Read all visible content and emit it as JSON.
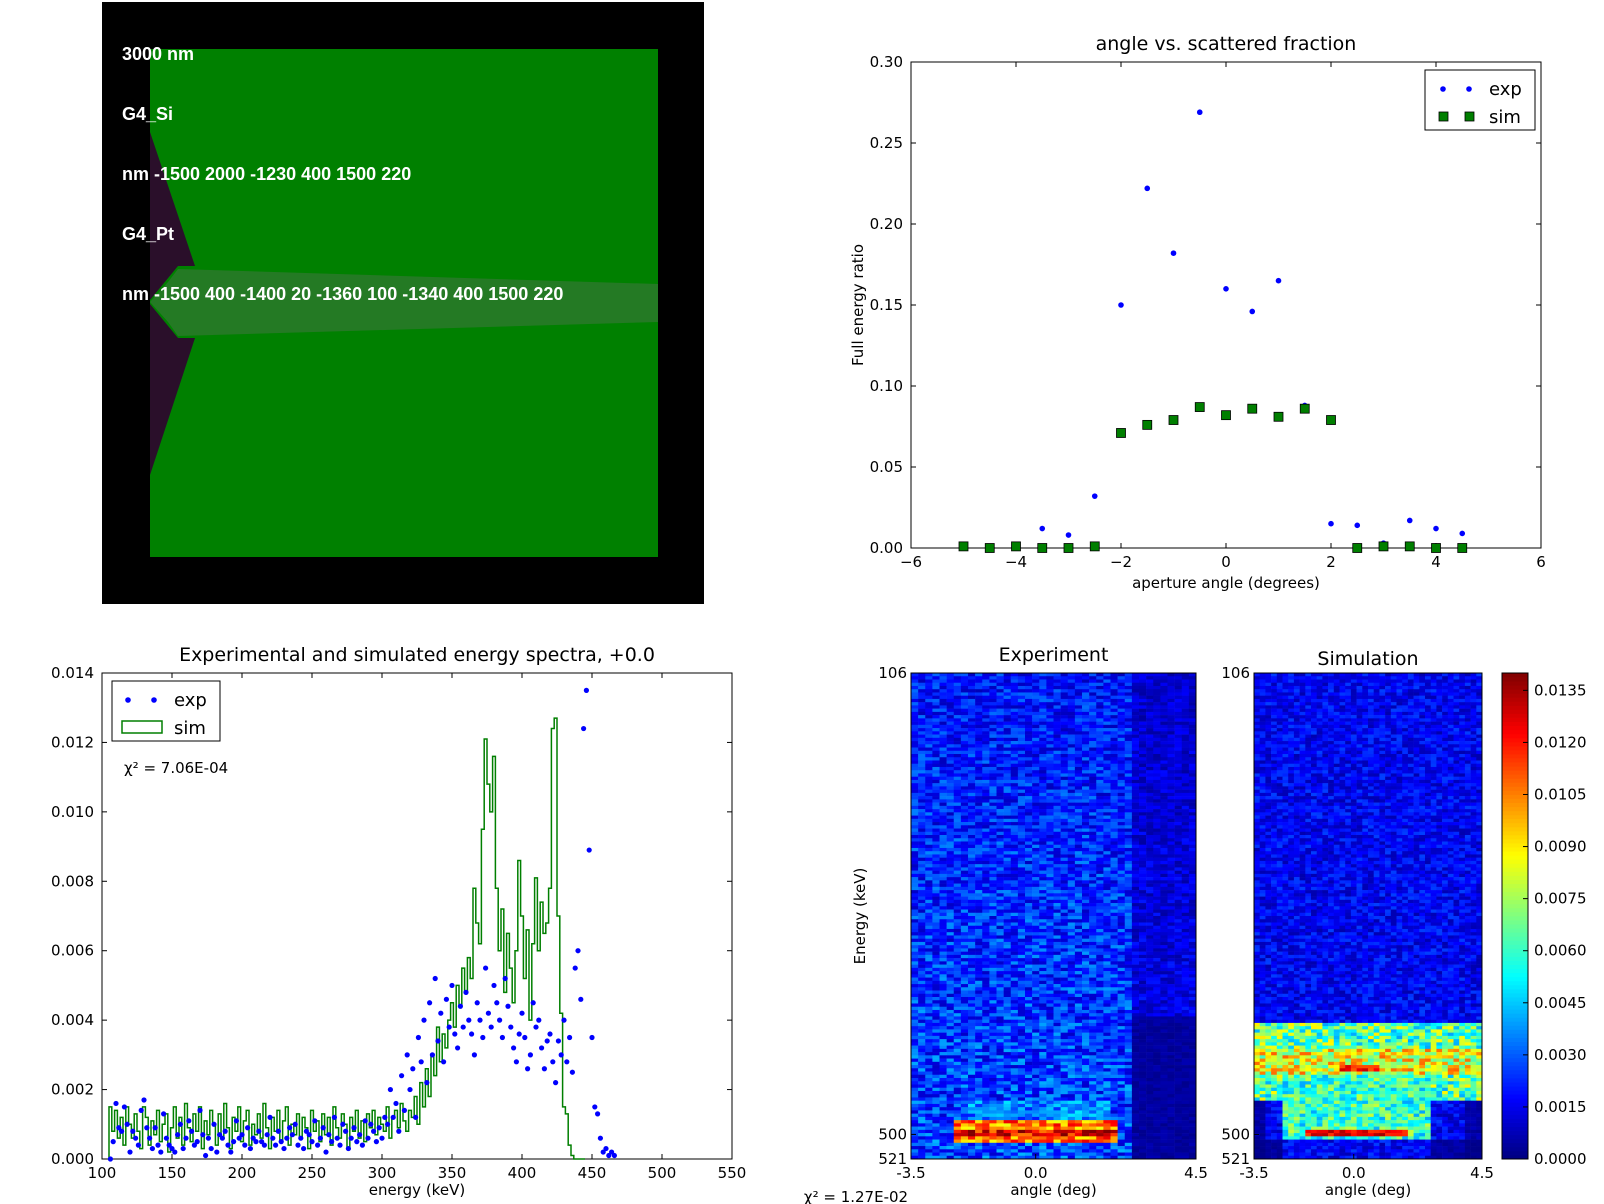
{
  "sim_panel": {
    "lines": [
      "3000 nm",
      "G4_Si",
      "nm -1500 2000 -1230 400 1500 220",
      "G4_Pt",
      "nm -1500 400 -1400 20 -1360 100 -1340 400 1500 220"
    ],
    "colors": {
      "background": "#000000",
      "si": "#008000",
      "pt": "#2a0f2a",
      "beam": "#247a24"
    }
  },
  "footer": {
    "chi2": "χ² = 1.27E-02"
  },
  "chart_data": [
    {
      "type": "scatter",
      "title": "angle vs. scattered fraction",
      "xlabel": "aperture angle (degrees)",
      "ylabel": "Full energy ratio",
      "xlim": [
        -6,
        6
      ],
      "ylim": [
        0.0,
        0.3
      ],
      "xticks": [
        -6,
        -4,
        -2,
        0,
        2,
        4,
        6
      ],
      "xtick_labels": [
        "−6",
        "−4",
        "−2",
        "0",
        "2",
        "4",
        "6"
      ],
      "yticks": [
        0.0,
        0.05,
        0.1,
        0.15,
        0.2,
        0.25,
        0.3
      ],
      "ytick_labels": [
        "0.00",
        "0.05",
        "0.10",
        "0.15",
        "0.20",
        "0.25",
        "0.30"
      ],
      "legend": "top-right",
      "series": [
        {
          "name": "exp",
          "marker": "dot",
          "color": "#0000ff",
          "x": [
            -5.0,
            -4.5,
            -4.0,
            -3.5,
            -3.0,
            -2.5,
            -2.0,
            -1.5,
            -1.0,
            -0.5,
            0.0,
            0.5,
            1.0,
            1.5,
            2.0,
            2.5,
            3.0,
            3.5,
            4.0,
            4.5
          ],
          "y": [
            0.0,
            0.0,
            0.0,
            0.012,
            0.008,
            0.032,
            0.15,
            0.222,
            0.182,
            0.269,
            0.16,
            0.146,
            0.165,
            0.088,
            0.015,
            0.014,
            0.003,
            0.017,
            0.012,
            0.009
          ]
        },
        {
          "name": "sim",
          "marker": "square",
          "color": "#007f00",
          "x": [
            -5.0,
            -4.5,
            -4.0,
            -3.5,
            -3.0,
            -2.5,
            -2.0,
            -1.5,
            -1.0,
            -0.5,
            0.0,
            0.5,
            1.0,
            1.5,
            2.0,
            2.5,
            3.0,
            3.5,
            4.0,
            4.5
          ],
          "y": [
            0.001,
            0.0,
            0.001,
            0.0,
            0.0,
            0.001,
            0.071,
            0.076,
            0.079,
            0.087,
            0.082,
            0.086,
            0.081,
            0.086,
            0.079,
            0.0,
            0.001,
            0.001,
            0.0,
            0.0
          ]
        }
      ]
    },
    {
      "type": "line",
      "title": "Experimental and simulated energy spectra, +0.0",
      "xlabel": "energy (keV)",
      "ylabel": "",
      "xlim": [
        100,
        550
      ],
      "ylim": [
        0,
        0.014
      ],
      "xticks": [
        100,
        150,
        200,
        250,
        300,
        350,
        400,
        450,
        500,
        550
      ],
      "yticks": [
        0.0,
        0.002,
        0.004,
        0.006,
        0.008,
        0.01,
        0.012,
        0.014
      ],
      "ytick_labels": [
        "0.000",
        "0.002",
        "0.004",
        "0.006",
        "0.008",
        "0.010",
        "0.012",
        "0.014"
      ],
      "legend": "top-left",
      "annotation": "χ² = 7.06E-04",
      "series": [
        {
          "name": "exp",
          "marker": "dot",
          "color": "#0000ff",
          "x_start": 106,
          "x_step": 2,
          "y": [
            0.0,
            0.0005,
            0.0016,
            0.0009,
            0.0008,
            0.0015,
            0.001,
            0.0002,
            0.0008,
            0.0006,
            0.0004,
            0.0014,
            0.0017,
            0.0009,
            0.0006,
            0.0003,
            0.0009,
            0.0004,
            0.0002,
            0.0013,
            0.0006,
            0.0004,
            0.0003,
            0.0002,
            0.0007,
            0.001,
            0.0003,
            0.0006,
            0.0011,
            0.0008,
            0.0004,
            0.0005,
            0.0014,
            0.0007,
            0.0001,
            0.0006,
            0.0003,
            0.001,
            0.0002,
            0.0007,
            0.0006,
            0.0008,
            0.0004,
            0.0002,
            0.0005,
            0.0011,
            0.0006,
            0.0007,
            0.0004,
            0.0009,
            0.0003,
            0.0006,
            0.0005,
            0.0008,
            0.0005,
            0.0004,
            0.0007,
            0.0012,
            0.0006,
            0.0004,
            0.0008,
            0.0005,
            0.0003,
            0.0006,
            0.0009,
            0.0007,
            0.001,
            0.0004,
            0.0006,
            0.0003,
            0.0008,
            0.0007,
            0.0005,
            0.0011,
            0.0004,
            0.0006,
            0.0009,
            0.0002,
            0.0007,
            0.0005,
            0.0012,
            0.0006,
            0.0004,
            0.001,
            0.0008,
            0.0003,
            0.0006,
            0.0009,
            0.0005,
            0.0007,
            0.0004,
            0.0011,
            0.0006,
            0.001,
            0.0008,
            0.0005,
            0.0009,
            0.0006,
            0.0012,
            0.001,
            0.002,
            0.0012,
            0.0016,
            0.0008,
            0.0024,
            0.0014,
            0.003,
            0.002,
            0.0026,
            0.0012,
            0.0035,
            0.0028,
            0.004,
            0.0022,
            0.0045,
            0.003,
            0.0052,
            0.0034,
            0.0042,
            0.0028,
            0.0046,
            0.0038,
            0.005,
            0.0036,
            0.0032,
            0.0044,
            0.0038,
            0.0048,
            0.004,
            0.0036,
            0.003,
            0.0045,
            0.004,
            0.0035,
            0.0055,
            0.0042,
            0.0038,
            0.005,
            0.0045,
            0.004,
            0.0035,
            0.0052,
            0.0044,
            0.0038,
            0.0032,
            0.0028,
            0.0036,
            0.0042,
            0.0035,
            0.0026,
            0.003,
            0.0045,
            0.0038,
            0.004,
            0.0032,
            0.0026,
            0.0034,
            0.0036,
            0.0028,
            0.0022,
            0.0034,
            0.003,
            0.004,
            0.0028,
            0.0035,
            0.0025,
            0.0055,
            0.006,
            0.0046,
            0.0124,
            0.0135,
            0.0089,
            0.0035,
            0.0015,
            0.0013,
            0.0006,
            0.0002,
            0.0003,
            0.0001,
            0.0002,
            0.0001
          ]
        },
        {
          "name": "sim",
          "marker": "steps",
          "color": "#007f00",
          "x_start": 106,
          "x_step": 2,
          "y": [
            0.0015,
            0.0008,
            0.0014,
            0.0006,
            0.0012,
            0.0004,
            0.0015,
            0.001,
            0.0006,
            0.0013,
            0.0008,
            0.0003,
            0.0015,
            0.0012,
            0.0004,
            0.0011,
            0.0007,
            0.0014,
            0.0005,
            0.001,
            0.0013,
            0.0002,
            0.0009,
            0.0015,
            0.0006,
            0.0012,
            0.0004,
            0.0016,
            0.0009,
            0.0005,
            0.0013,
            0.0008,
            0.0015,
            0.0003,
            0.0011,
            0.0007,
            0.0014,
            0.001,
            0.0004,
            0.0013,
            0.0006,
            0.0016,
            0.0009,
            0.0003,
            0.0012,
            0.0008,
            0.0015,
            0.0005,
            0.0011,
            0.0014,
            0.0004,
            0.001,
            0.0007,
            0.0013,
            0.0006,
            0.0016,
            0.0009,
            0.0003,
            0.0012,
            0.0008,
            0.0014,
            0.0005,
            0.0011,
            0.0015,
            0.0004,
            0.001,
            0.0007,
            0.0013,
            0.0006,
            0.0012,
            0.0009,
            0.0003,
            0.0014,
            0.0008,
            0.0011,
            0.0005,
            0.0013,
            0.0007,
            0.0012,
            0.0004,
            0.0015,
            0.0009,
            0.0006,
            0.0013,
            0.001,
            0.0003,
            0.0012,
            0.0008,
            0.0014,
            0.0006,
            0.0011,
            0.0005,
            0.0013,
            0.0009,
            0.0014,
            0.0007,
            0.0012,
            0.001,
            0.0008,
            0.0015,
            0.0006,
            0.0012,
            0.0014,
            0.0009,
            0.0016,
            0.0011,
            0.0008,
            0.0014,
            0.0012,
            0.0018,
            0.001,
            0.0022,
            0.0015,
            0.0026,
            0.0018,
            0.003,
            0.0024,
            0.0038,
            0.0028,
            0.0036,
            0.0032,
            0.004,
            0.0045,
            0.0038,
            0.005,
            0.0044,
            0.0055,
            0.0048,
            0.0058,
            0.0052,
            0.0078,
            0.0068,
            0.0062,
            0.0095,
            0.0121,
            0.0108,
            0.01,
            0.0116,
            0.0078,
            0.006,
            0.0072,
            0.0048,
            0.0065,
            0.0055,
            0.0045,
            0.006,
            0.0086,
            0.007,
            0.0052,
            0.0066,
            0.004,
            0.0062,
            0.0081,
            0.006,
            0.0074,
            0.0065,
            0.0068,
            0.0078,
            0.0124,
            0.0127,
            0.007,
            0.0042,
            0.0015,
            0.0013,
            0.0004,
            0.0001,
            0.0,
            0.0,
            0.0,
            0.0
          ]
        }
      ]
    },
    {
      "type": "heatmap",
      "title": "Experiment",
      "xlabel": "angle (deg)",
      "ylabel": "Energy (keV)",
      "xtick_labels": [
        "-3.5",
        "0.0",
        "4.5"
      ],
      "ytick_labels": [
        "106",
        "500",
        "521"
      ],
      "xlim": [
        -3.5,
        4.5
      ],
      "ylim": [
        106,
        521
      ]
    },
    {
      "type": "heatmap",
      "title": "Simulation",
      "xlabel": "angle (deg)",
      "ylabel": "",
      "xtick_labels": [
        "-3.5",
        "0.0",
        "4.5"
      ],
      "ytick_labels": [
        "106",
        "500",
        "521"
      ],
      "xlim": [
        -3.5,
        4.5
      ],
      "ylim": [
        106,
        521
      ],
      "colorbar": {
        "min": 0.0,
        "max": 0.014,
        "tick_labels": [
          "0.0000",
          "0.0015",
          "0.0030",
          "0.0045",
          "0.0060",
          "0.0075",
          "0.0090",
          "0.0105",
          "0.0120",
          "0.0135"
        ],
        "ticks": [
          0.0,
          0.0015,
          0.003,
          0.0045,
          0.006,
          0.0075,
          0.009,
          0.0105,
          0.012,
          0.0135
        ]
      }
    }
  ]
}
